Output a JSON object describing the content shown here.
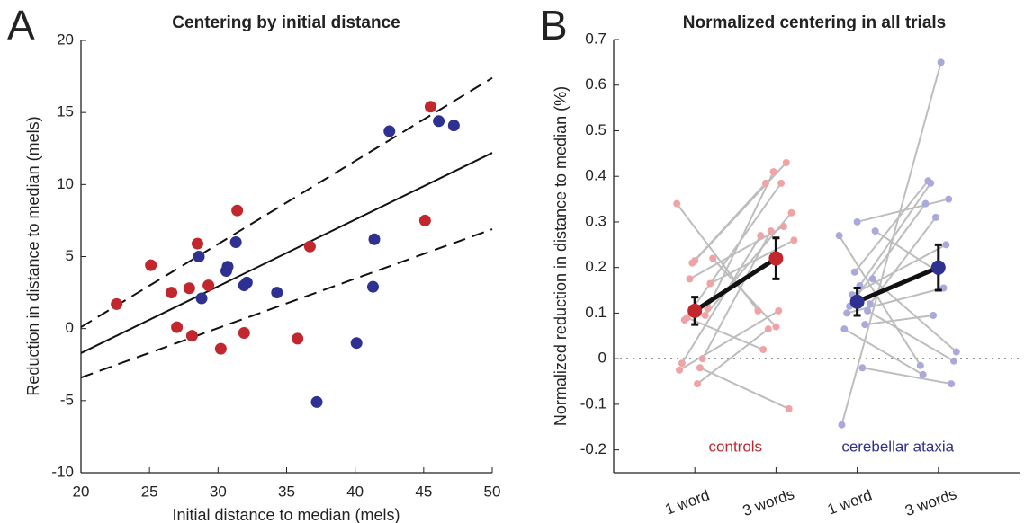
{
  "chart_data": [
    {
      "type": "scatter",
      "panel": "A",
      "title": "Centering by initial distance",
      "xlabel": "Initial distance to median (mels)",
      "ylabel": "Reduction in distance to median (mels)",
      "xlim": [
        20,
        50
      ],
      "ylim": [
        -10,
        20
      ],
      "xticks": [
        20,
        25,
        30,
        35,
        40,
        45,
        50
      ],
      "yticks": [
        -10,
        -5,
        0,
        5,
        10,
        15,
        20
      ],
      "series": [
        {
          "color": "#c1272d",
          "x": [
            22.6,
            25.1,
            26.6,
            27.0,
            27.9,
            28.1,
            28.5,
            29.3,
            30.2,
            31.4,
            31.9,
            35.8,
            36.7,
            45.1,
            45.5
          ],
          "values": [
            1.7,
            4.4,
            2.5,
            0.1,
            2.8,
            -0.5,
            5.9,
            3.0,
            -1.4,
            8.2,
            -0.3,
            -0.7,
            5.7,
            7.5,
            15.4
          ]
        },
        {
          "color": "#2e3192",
          "x": [
            28.6,
            28.8,
            30.6,
            30.7,
            31.3,
            31.9,
            32.1,
            34.3,
            37.2,
            40.1,
            41.3,
            41.4,
            42.5,
            46.1,
            47.2
          ],
          "values": [
            5.0,
            2.1,
            4.0,
            4.3,
            6.0,
            3.0,
            3.2,
            2.5,
            -5.1,
            -1.0,
            2.9,
            6.2,
            13.7,
            14.4,
            14.1
          ]
        }
      ],
      "lines": [
        {
          "x": [
            20,
            50
          ],
          "values": [
            -1.7,
            12.2
          ],
          "dashed": false
        },
        {
          "x": [
            20,
            50
          ],
          "values": [
            0.1,
            17.4
          ],
          "dashed": true
        },
        {
          "x": [
            20,
            50
          ],
          "values": [
            -3.4,
            6.9
          ],
          "dashed": true
        }
      ]
    },
    {
      "type": "dot",
      "panel": "B",
      "title": "Normalized centering in all trials",
      "ylabel": "Normalized reduction in distance to median (%)",
      "ylim": [
        -0.25,
        0.7
      ],
      "yticks": [
        -0.2,
        -0.1,
        0,
        0.1,
        0.2,
        0.3,
        0.4,
        0.5,
        0.6,
        0.7
      ],
      "hline": 0,
      "categories": [
        "1 word",
        "3 words",
        "1 word",
        "3 words"
      ],
      "groups": [
        {
          "name": "controls",
          "color": "#c1272d",
          "light": "#f0a3a5",
          "first": [
            0.34,
            0.215,
            0.22,
            0.21,
            0.165,
            0.175,
            0.11,
            0.09,
            0.095,
            0.085,
            0.0,
            -0.01,
            -0.02,
            -0.025,
            -0.055
          ],
          "second": [
            0.105,
            0.43,
            0.07,
            0.385,
            0.26,
            0.29,
            0.41,
            0.02,
            0.32,
            0.385,
            0.28,
            0.27,
            -0.11,
            0.105,
            0.065
          ],
          "mean": [
            0.105,
            0.22
          ],
          "error": [
            0.03,
            0.045
          ]
        },
        {
          "name": "cerebellar ataxia",
          "color": "#2e3192",
          "light": "#a9a9db",
          "first": [
            0.27,
            0.3,
            0.28,
            0.19,
            0.175,
            0.14,
            0.12,
            0.115,
            0.105,
            0.1,
            0.075,
            0.065,
            -0.02,
            -0.145,
            0.16
          ],
          "second": [
            -0.015,
            0.35,
            0.19,
            0.39,
            0.015,
            0.25,
            0.31,
            0.34,
            -0.005,
            0.155,
            0.095,
            -0.035,
            -0.055,
            0.65,
            0.385
          ],
          "mean": [
            0.125,
            0.2
          ],
          "error": [
            0.03,
            0.05
          ]
        }
      ]
    }
  ]
}
